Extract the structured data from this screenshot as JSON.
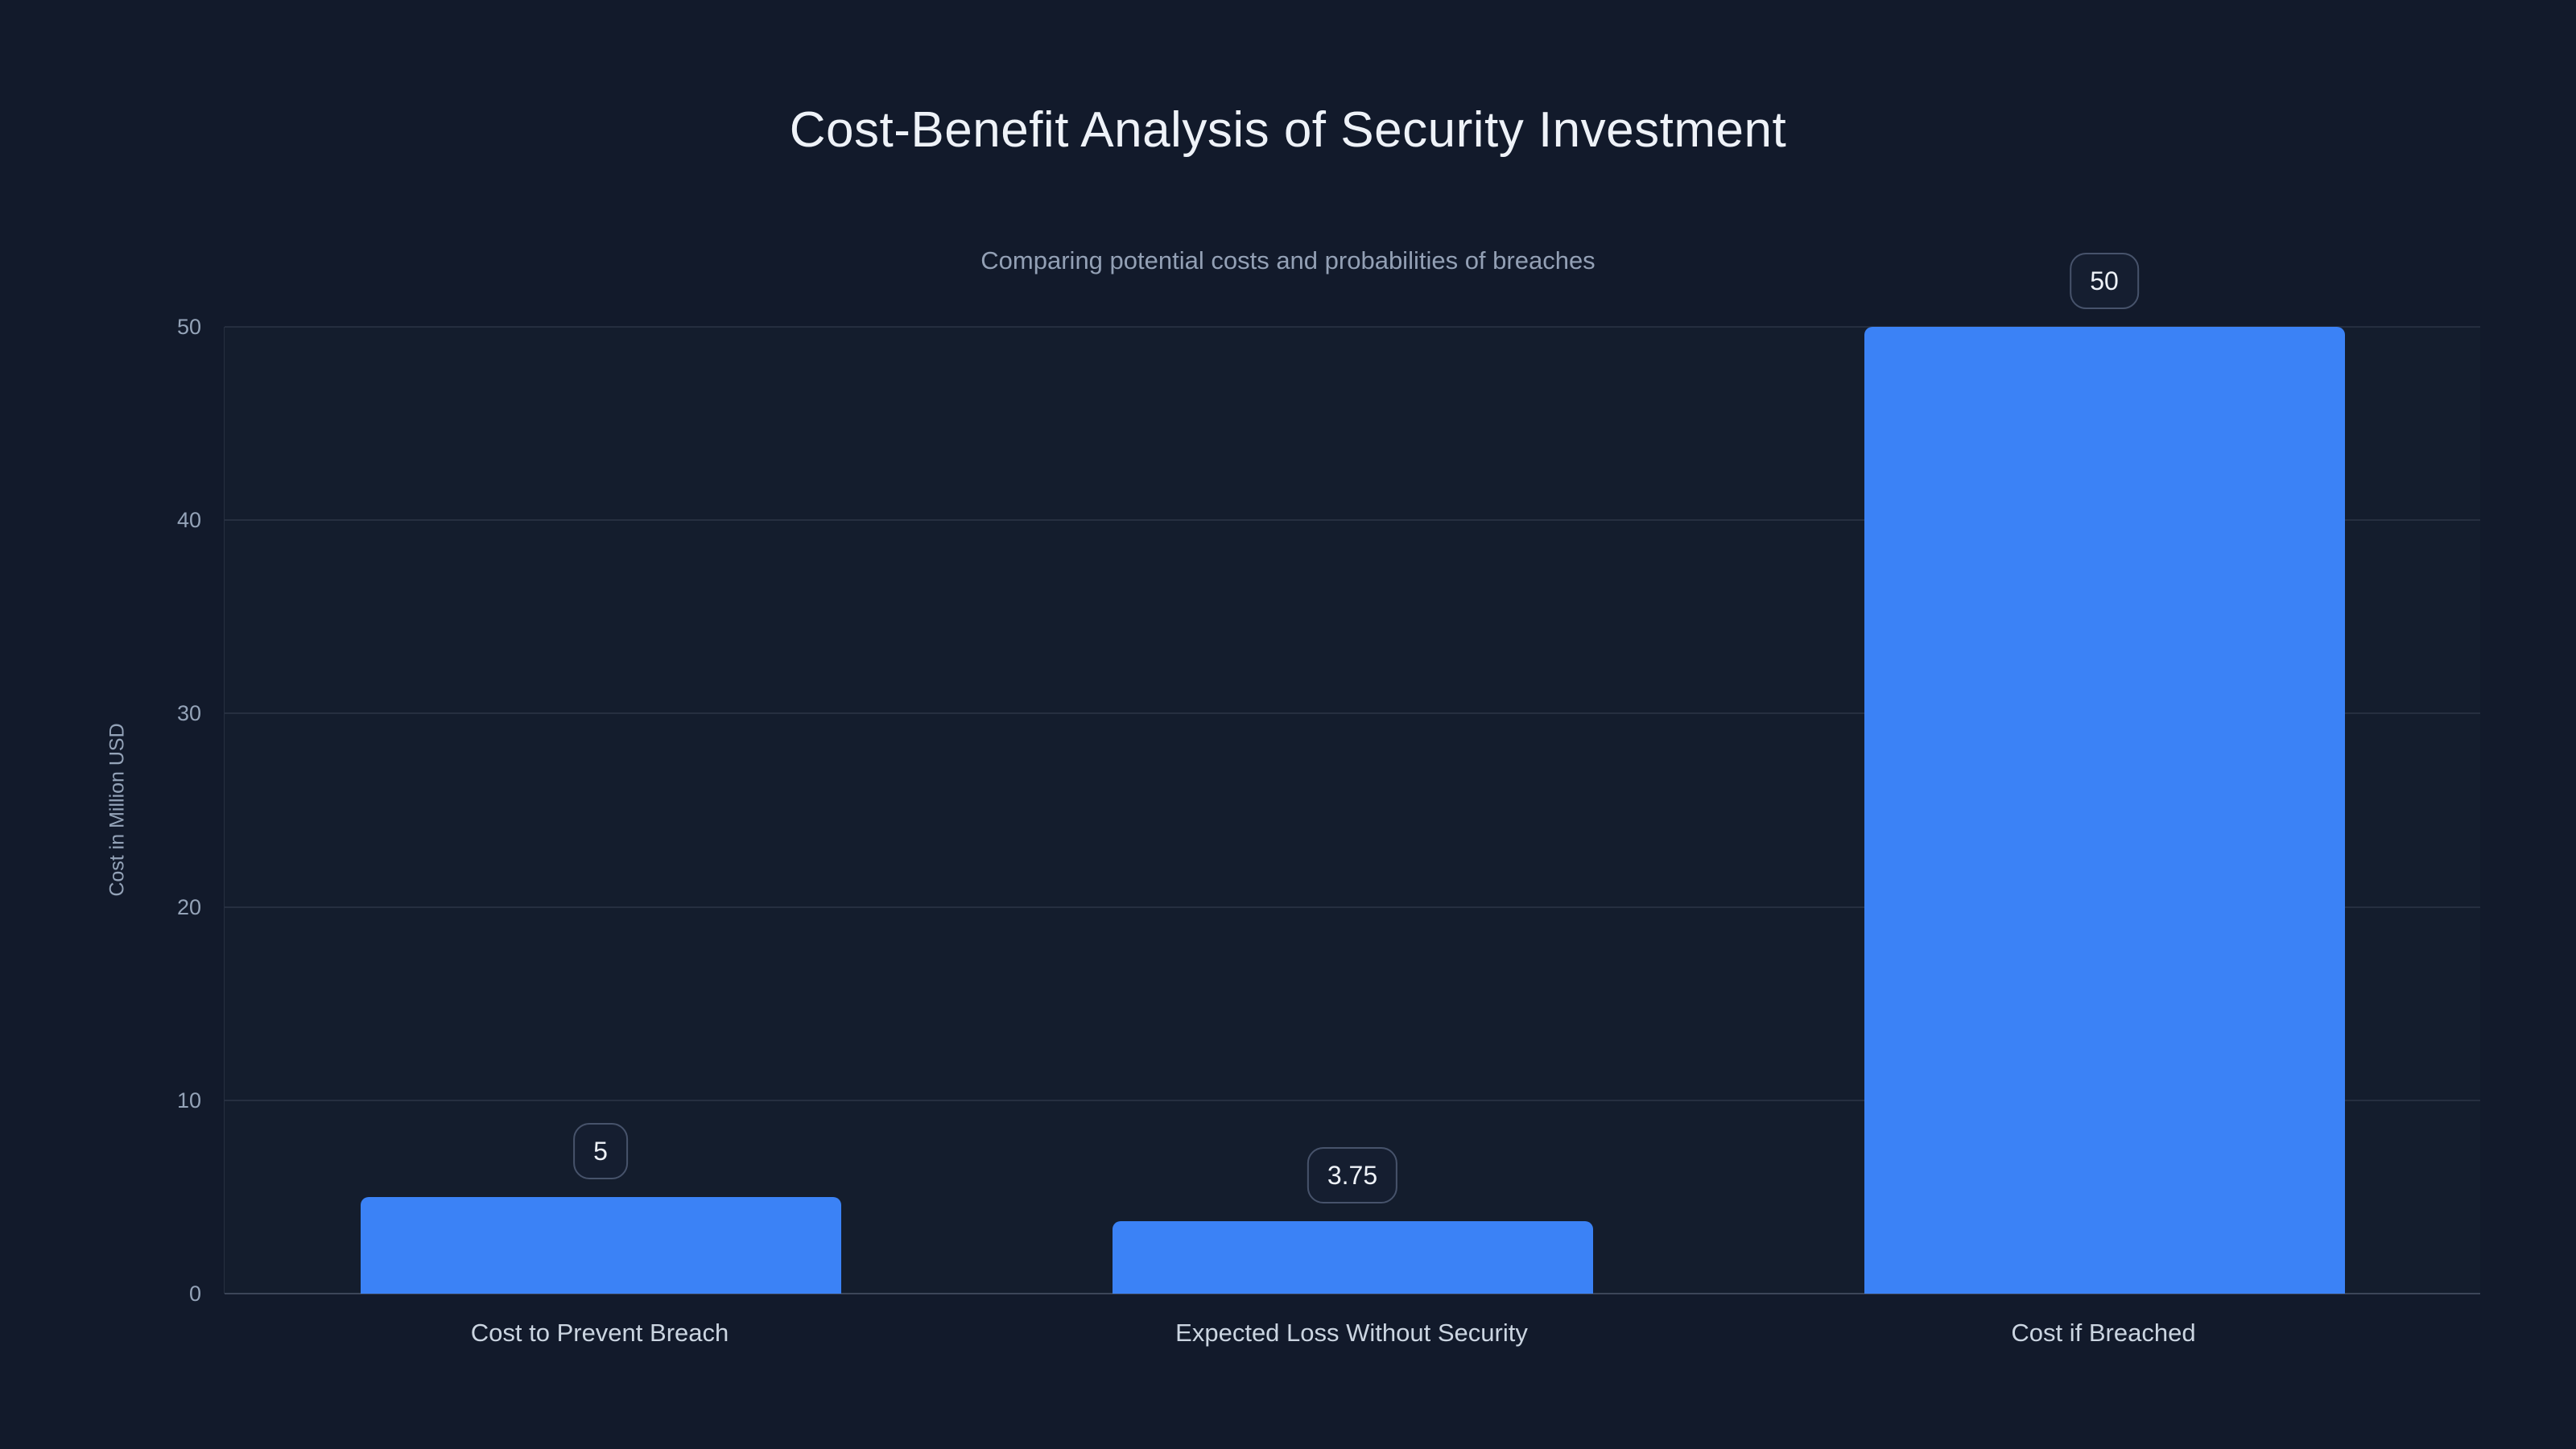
{
  "page": {
    "title": "Cost-Benefit Analysis of Security Investment",
    "subtitle": "Comparing potential costs and probabilities of breaches"
  },
  "chart_data": {
    "type": "bar",
    "title": "Cost-Benefit Analysis of Security Investment",
    "subtitle": "Comparing potential costs and probabilities of breaches",
    "categories": [
      "Cost to Prevent Breach",
      "Expected Loss Without Security",
      "Cost if Breached"
    ],
    "values": [
      5,
      3.75,
      50
    ],
    "value_labels": [
      "5",
      "3.75",
      "50"
    ],
    "xlabel": "",
    "ylabel": "Cost in Million USD",
    "ylim": [
      0,
      50
    ],
    "yticks": [
      0,
      10,
      20,
      30,
      40,
      50
    ],
    "grid": true,
    "legend": false,
    "value_label_style": "badge-above-bar"
  },
  "theme": {
    "background": "#121a2b",
    "bar_color": "#3b82f6",
    "grid_color": "rgba(148,163,184,0.14)",
    "axis_line_color": "rgba(148,163,184,0.32)",
    "title_color": "#eef2f8",
    "subtitle_color": "#93a0b5",
    "tick_color": "#94a3b8",
    "category_color": "#cbd5e1",
    "badge_bg": "#151e30",
    "badge_border": "#47536b",
    "badge_text": "#eef2f8"
  }
}
